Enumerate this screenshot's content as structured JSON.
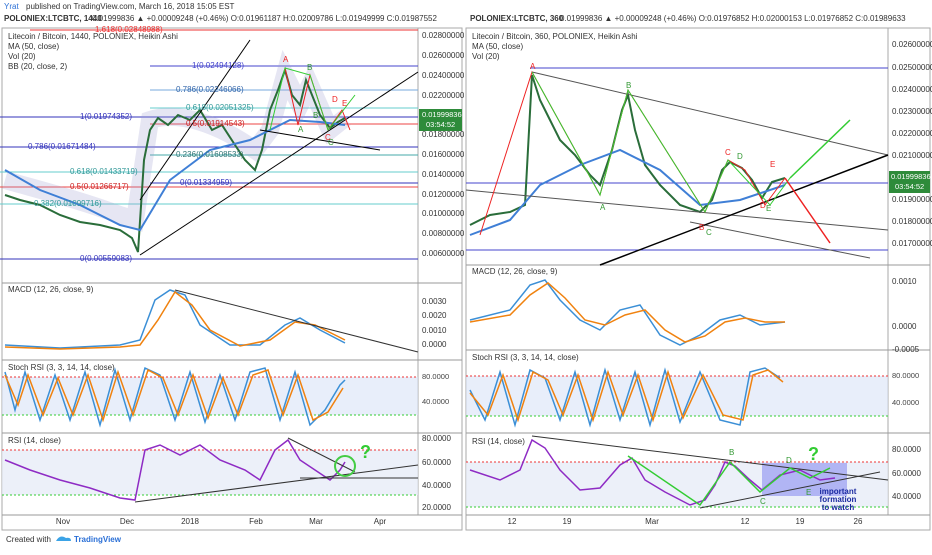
{
  "header": {
    "author": "Yrat",
    "published": "published on TradingView.com, March 16, 2018 15:05 EST"
  },
  "footer": {
    "created": "Created with",
    "brand": "TradingView"
  },
  "left": {
    "symbol": "POLONIEX:LTCBTC, 1440",
    "quote": "0.01999836 ▲ +0.00009248 (+0.46%) O:0.01961187 H:0.02009786 L:0.01949999 C:0.01987552",
    "legend": [
      "Litecoin / Bitcoin, 1440, POLONIEX, Heikin Ashi",
      "MA (50, close)",
      "Vol (20)",
      "BB (20, close, 2)"
    ],
    "price_axis": [
      "0.02800000",
      "0.02600000",
      "0.02400000",
      "0.02200000",
      "0.01800000",
      "0.01600000",
      "0.01400000",
      "0.01200000",
      "0.01000000",
      "0.00800000",
      "0.00600000"
    ],
    "price_tag": "0.01999836",
    "timer": "03:54:52",
    "fib": [
      "1.618(0.02848988)",
      "1(0.02494128)",
      "0.786(0.02246066)",
      "0.618(0.02051325)",
      "1(0.01974352)",
      "0.5(0.01914543)",
      "0.786(0.01671484)",
      "0.236(0.01608533)",
      "0.618(0.01433719)",
      "0(0.01334959)",
      "0.5(0.01266717)",
      "0.382(0.01099716)",
      "0(0.00559083)"
    ],
    "points": [
      "A",
      "B",
      "C",
      "D",
      "E",
      "A",
      "B",
      "C"
    ],
    "macd_label": "MACD (12, 26, close, 9)",
    "macd_axis": [
      "0.0030",
      "0.0020",
      "0.0010",
      "0.0000"
    ],
    "stoch_label": "Stoch RSI (3, 3, 14, 14, close)",
    "stoch_axis": [
      "80.0000",
      "40.0000"
    ],
    "rsi_label": "RSI (14, close)",
    "rsi_axis": [
      "80.0000",
      "60.0000",
      "40.0000",
      "20.0000"
    ],
    "rsi_note": "?",
    "x_axis": [
      "Nov",
      "Dec",
      "2018",
      "Feb",
      "Mar",
      "Apr"
    ]
  },
  "right": {
    "symbol": "POLONIEX:LTCBTC, 360",
    "quote": "0.01999836 ▲ +0.00009248 (+0.46%) O:0.01976852 H:0.02000153 L:0.01976852 C:0.01989633",
    "legend": [
      "Litecoin / Bitcoin, 360, POLONIEX, Heikin Ashi",
      "MA (50, close)",
      "Vol (20)"
    ],
    "price_axis": [
      "0.02600000",
      "0.02500000",
      "0.02400000",
      "0.02300000",
      "0.02200000",
      "0.02100000",
      "0.01900000",
      "0.01800000",
      "0.01700000"
    ],
    "price_tag": "0.01999836",
    "timer": "03:54:52",
    "points": [
      "A",
      "B",
      "A",
      "C",
      "B",
      "C",
      "D",
      "E",
      "D",
      "E"
    ],
    "macd_label": "MACD (12, 26, close, 9)",
    "macd_axis": [
      "0.0010",
      "0.0000",
      "-0.0005"
    ],
    "stoch_label": "Stoch RSI (3, 3, 14, 14, close)",
    "stoch_axis": [
      "80.0000",
      "40.0000"
    ],
    "rsi_label": "RSI (14, close)",
    "rsi_axis": [
      "80.0000",
      "60.0000",
      "40.0000"
    ],
    "rsi_points": [
      "B",
      "C",
      "D",
      "E"
    ],
    "rsi_note": "?",
    "annotation": [
      "important",
      "formation",
      "to watch"
    ],
    "x_axis": [
      "12",
      "19",
      "Mar",
      "12",
      "19",
      "26"
    ]
  }
}
